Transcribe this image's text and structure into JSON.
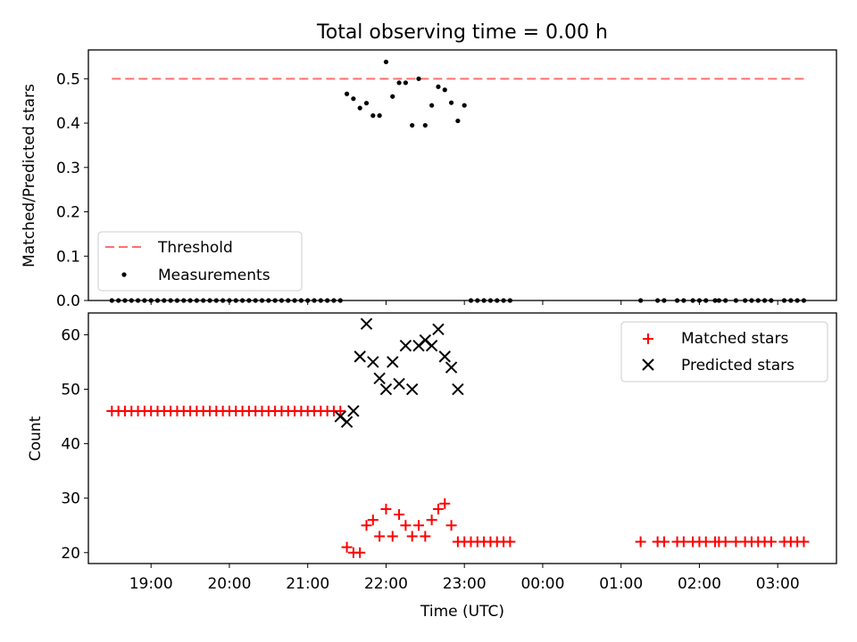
{
  "figure": {
    "title": "Total observing time = 0.00 h"
  },
  "chart_data": [
    {
      "type": "scatter",
      "panel": "top",
      "ylabel": "Matched/Predicted stars",
      "xlabel": "",
      "ylim": [
        0,
        0.565
      ],
      "yticks": [
        0.0,
        0.1,
        0.2,
        0.3,
        0.4,
        0.5
      ],
      "ytick_labels": [
        "0.0",
        "0.1",
        "0.2",
        "0.3",
        "0.4",
        "0.5"
      ],
      "legend_position": "lower-left",
      "threshold": {
        "name": "Threshold",
        "value": 0.5,
        "x_range": [
          "18:30",
          "03:20"
        ],
        "color": "#ff7070",
        "style": "dashed"
      },
      "series": [
        {
          "name": "Measurements",
          "color": "#000000",
          "marker": "dot",
          "x": [
            "18:30",
            "18:35",
            "18:40",
            "18:45",
            "18:50",
            "18:55",
            "19:00",
            "19:05",
            "19:10",
            "19:15",
            "19:20",
            "19:25",
            "19:30",
            "19:35",
            "19:40",
            "19:45",
            "19:50",
            "19:55",
            "20:00",
            "20:05",
            "20:10",
            "20:15",
            "20:20",
            "20:25",
            "20:30",
            "20:35",
            "20:40",
            "20:45",
            "20:50",
            "20:55",
            "21:00",
            "21:05",
            "21:10",
            "21:15",
            "21:20",
            "21:25",
            "21:30",
            "21:35",
            "21:40",
            "21:45",
            "21:50",
            "21:55",
            "22:00",
            "22:05",
            "22:10",
            "22:15",
            "22:20",
            "22:25",
            "22:30",
            "22:35",
            "22:40",
            "22:45",
            "22:50",
            "22:55",
            "23:00",
            "23:05",
            "23:10",
            "23:15",
            "23:20",
            "23:25",
            "23:30",
            "23:35",
            "01:15",
            "01:28",
            "01:33",
            "01:43",
            "01:48",
            "01:55",
            "02:00",
            "02:05",
            "02:12",
            "02:15",
            "02:20",
            "02:28",
            "02:35",
            "02:40",
            "02:45",
            "02:50",
            "02:55",
            "03:05",
            "03:10",
            "03:15",
            "03:20"
          ],
          "values": [
            0,
            0,
            0,
            0,
            0,
            0,
            0,
            0,
            0,
            0,
            0,
            0,
            0,
            0,
            0,
            0,
            0,
            0,
            0,
            0,
            0,
            0,
            0,
            0,
            0,
            0,
            0,
            0,
            0,
            0,
            0,
            0,
            0,
            0,
            0,
            0,
            0.466,
            0.455,
            0.434,
            0.445,
            0.417,
            0.417,
            0.538,
            0.46,
            0.491,
            0.491,
            0.395,
            0.5,
            0.395,
            0.44,
            0.482,
            0.475,
            0.446,
            0.405,
            0.44,
            0,
            0,
            0,
            0,
            0,
            0,
            0,
            0,
            0,
            0,
            0,
            0,
            0,
            0,
            0,
            0,
            0,
            0,
            0,
            0,
            0,
            0,
            0,
            0,
            0,
            0,
            0,
            0
          ]
        }
      ]
    },
    {
      "type": "scatter",
      "panel": "bottom",
      "ylabel": "Count",
      "xlabel": "Time (UTC)",
      "ylim": [
        18,
        64
      ],
      "yticks": [
        20,
        30,
        40,
        50,
        60
      ],
      "ytick_labels": [
        "20",
        "30",
        "40",
        "50",
        "60"
      ],
      "xlim": [
        "18:12",
        "03:45"
      ],
      "xticks": [
        "19:00",
        "20:00",
        "21:00",
        "22:00",
        "23:00",
        "00:00",
        "01:00",
        "02:00",
        "03:00"
      ],
      "xtick_labels": [
        "19:00",
        "20:00",
        "21:00",
        "22:00",
        "23:00",
        "00:00",
        "01:00",
        "02:00",
        "03:00"
      ],
      "legend_position": "upper-right",
      "series": [
        {
          "name": "Matched stars",
          "color": "#ff0000",
          "marker": "plus",
          "x": [
            "18:30",
            "18:35",
            "18:40",
            "18:45",
            "18:50",
            "18:55",
            "19:00",
            "19:05",
            "19:10",
            "19:15",
            "19:20",
            "19:25",
            "19:30",
            "19:35",
            "19:40",
            "19:45",
            "19:50",
            "19:55",
            "20:00",
            "20:05",
            "20:10",
            "20:15",
            "20:20",
            "20:25",
            "20:30",
            "20:35",
            "20:40",
            "20:45",
            "20:50",
            "20:55",
            "21:00",
            "21:05",
            "21:10",
            "21:15",
            "21:20",
            "21:25",
            "21:30",
            "21:35",
            "21:40",
            "21:45",
            "21:50",
            "21:55",
            "22:00",
            "22:05",
            "22:10",
            "22:15",
            "22:20",
            "22:25",
            "22:30",
            "22:35",
            "22:40",
            "22:45",
            "22:50",
            "22:55",
            "23:00",
            "23:05",
            "23:10",
            "23:15",
            "23:20",
            "23:25",
            "23:30",
            "23:35",
            "01:15",
            "01:28",
            "01:33",
            "01:43",
            "01:48",
            "01:55",
            "02:00",
            "02:05",
            "02:12",
            "02:15",
            "02:20",
            "02:28",
            "02:35",
            "02:40",
            "02:45",
            "02:50",
            "02:55",
            "03:05",
            "03:10",
            "03:15",
            "03:20"
          ],
          "values": [
            46,
            46,
            46,
            46,
            46,
            46,
            46,
            46,
            46,
            46,
            46,
            46,
            46,
            46,
            46,
            46,
            46,
            46,
            46,
            46,
            46,
            46,
            46,
            46,
            46,
            46,
            46,
            46,
            46,
            46,
            46,
            46,
            46,
            46,
            46,
            46,
            21,
            20,
            20,
            25,
            26,
            23,
            28,
            23,
            27,
            25,
            23,
            25,
            23,
            26,
            28,
            29,
            25,
            22,
            22,
            22,
            22,
            22,
            22,
            22,
            22,
            22,
            22,
            22,
            22,
            22,
            22,
            22,
            22,
            22,
            22,
            22,
            22,
            22,
            22,
            22,
            22,
            22,
            22,
            22,
            22,
            22,
            22
          ]
        },
        {
          "name": "Predicted stars",
          "color": "#000000",
          "marker": "x",
          "x": [
            "21:25",
            "21:30",
            "21:35",
            "21:40",
            "21:45",
            "21:50",
            "21:55",
            "22:00",
            "22:05",
            "22:10",
            "22:15",
            "22:20",
            "22:25",
            "22:30",
            "22:35",
            "22:40",
            "22:45",
            "22:50",
            "22:55"
          ],
          "values": [
            45,
            44,
            46,
            56,
            62,
            55,
            52,
            50,
            55,
            51,
            58,
            50,
            58,
            59,
            58,
            61,
            56,
            54,
            50
          ]
        }
      ]
    }
  ]
}
